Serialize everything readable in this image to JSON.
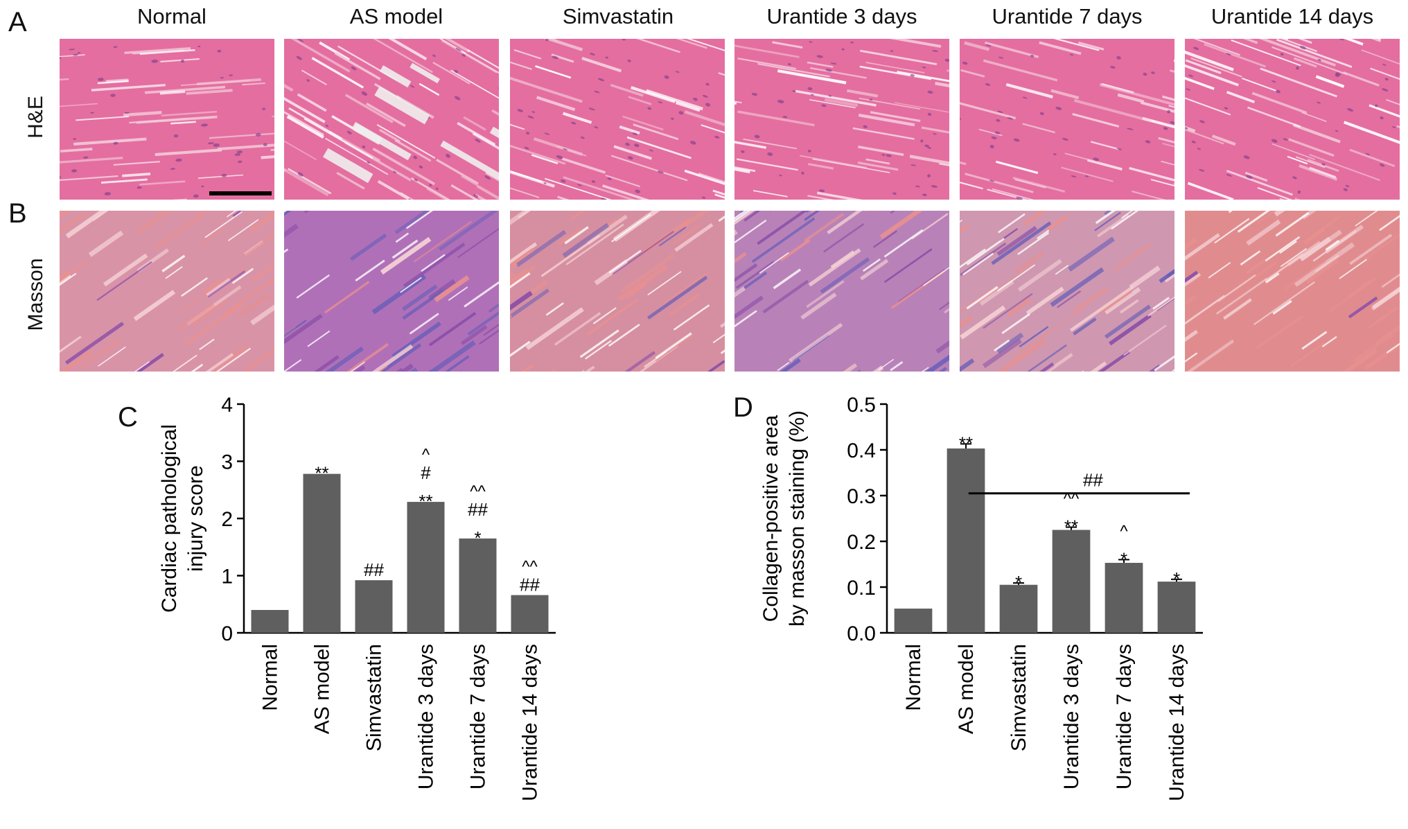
{
  "panels": {
    "A": {
      "letter": "A",
      "row_label": "H&E"
    },
    "B": {
      "letter": "B",
      "row_label": "Masson"
    },
    "C": {
      "letter": "C"
    },
    "D": {
      "letter": "D"
    }
  },
  "columns": [
    "Normal",
    "AS model",
    "Simvastatin",
    "Urantide 3 days",
    "Urantide 7 days",
    "Urantide 14 days"
  ],
  "colors": {
    "bar": "#5f5f5f",
    "he_base": "#e46ea0",
    "he_light": "#f3c9d8",
    "masson_base": "#d98a9a",
    "masson_blue": "#6a5fb8",
    "masson_purple": "#8a4fa8"
  },
  "chart_data": [
    {
      "type": "bar",
      "panel": "C",
      "categories": [
        "Normal",
        "AS model",
        "Simvastatin",
        "Urantide 3 days",
        "Urantide 7 days",
        "Urantide 14 days"
      ],
      "values": [
        0.4,
        2.78,
        0.92,
        2.29,
        1.65,
        0.66
      ],
      "ylabel": [
        "Cardiac pathological",
        "injury score"
      ],
      "ylim": [
        0,
        4
      ],
      "yticks": [
        "0",
        "1",
        "2",
        "3",
        "4"
      ],
      "annotations": [
        [],
        [
          "**"
        ],
        [
          "##"
        ],
        [
          "**",
          "#",
          "^"
        ],
        [
          "*",
          "##",
          "^^"
        ],
        [
          "##",
          "^^"
        ]
      ]
    },
    {
      "type": "bar",
      "panel": "D",
      "categories": [
        "Normal",
        "AS model",
        "Simvastatin",
        "Urantide 3 days",
        "Urantide 7 days",
        "Urantide 14 days"
      ],
      "values": [
        0.053,
        0.403,
        0.105,
        0.225,
        0.153,
        0.112
      ],
      "errors": [
        0.0,
        0.01,
        0.004,
        0.006,
        0.007,
        0.005
      ],
      "ylabel": [
        "Collagen-positive area",
        "by masson staining (%)"
      ],
      "ylim": [
        0,
        0.5
      ],
      "yticks": [
        "0.0",
        "0.1",
        "0.2",
        "0.3",
        "0.4",
        "0.5"
      ],
      "annotations": [
        [],
        [
          "**"
        ],
        [
          "*"
        ],
        [
          "**",
          "^^"
        ],
        [
          "*",
          "^"
        ],
        [
          "*"
        ]
      ],
      "bracket_label": "##"
    }
  ]
}
